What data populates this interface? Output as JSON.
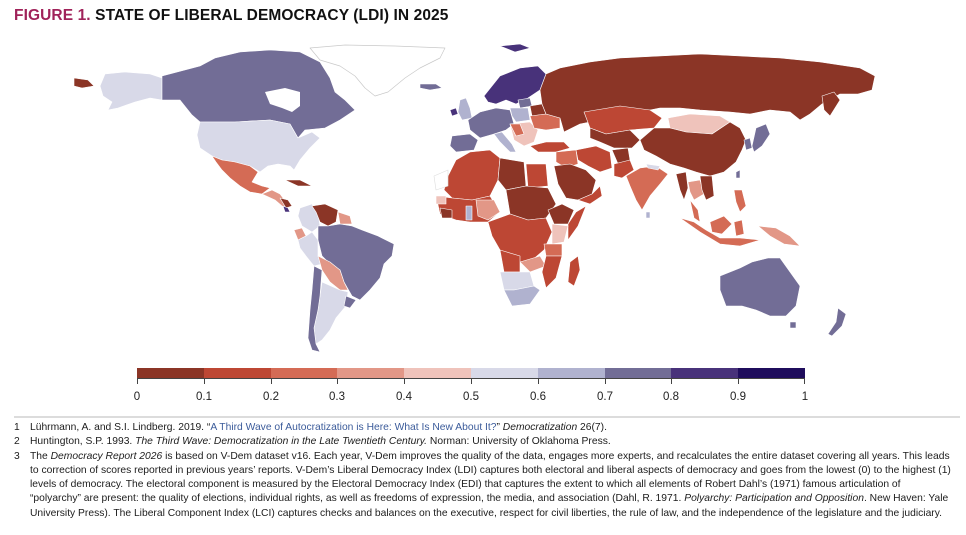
{
  "title": {
    "figure_label": "FIGURE 1.",
    "text": "STATE OF LIBERAL DEMOCRACY (LDI) IN 2025",
    "figure_label_color": "#a0225a"
  },
  "legend": {
    "ticks": [
      "0",
      "0.1",
      "0.2",
      "0.3",
      "0.4",
      "0.5",
      "0.6",
      "0.7",
      "0.8",
      "0.9",
      "1"
    ],
    "colors": [
      "#8b3526",
      "#bd4734",
      "#d46b55",
      "#e29787",
      "#efc3bb",
      "#d8d9e8",
      "#b0b2cf",
      "#726d96",
      "#48327a",
      "#1f0d5c"
    ]
  },
  "chart_data": {
    "type": "heatmap",
    "subtype": "choropleth-world-map",
    "title": "State of Liberal Democracy (LDI) in 2025",
    "scale": {
      "min": 0,
      "max": 1,
      "bins": [
        [
          0,
          0.1
        ],
        [
          0.1,
          0.2
        ],
        [
          0.2,
          0.3
        ],
        [
          0.3,
          0.4
        ],
        [
          0.4,
          0.5
        ],
        [
          0.5,
          0.6
        ],
        [
          0.6,
          0.7
        ],
        [
          0.7,
          0.8
        ],
        [
          0.8,
          0.9
        ],
        [
          0.9,
          1
        ]
      ]
    },
    "legend_position": "bottom",
    "regions": [
      {
        "name": "Canada",
        "bin": 7
      },
      {
        "name": "United States",
        "bin": 5
      },
      {
        "name": "Alaska",
        "bin": 5
      },
      {
        "name": "Greenland",
        "bin": -1
      },
      {
        "name": "Mexico",
        "bin": 2
      },
      {
        "name": "Central America",
        "bin": 3
      },
      {
        "name": "Nicaragua",
        "bin": 0
      },
      {
        "name": "Costa Rica",
        "bin": 8
      },
      {
        "name": "Cuba",
        "bin": 0
      },
      {
        "name": "Venezuela",
        "bin": 0
      },
      {
        "name": "Colombia",
        "bin": 5
      },
      {
        "name": "Ecuador",
        "bin": 3
      },
      {
        "name": "Peru",
        "bin": 5
      },
      {
        "name": "Brazil",
        "bin": 7
      },
      {
        "name": "Bolivia",
        "bin": 3
      },
      {
        "name": "Paraguay",
        "bin": 3
      },
      {
        "name": "Argentina",
        "bin": 5
      },
      {
        "name": "Chile",
        "bin": 7
      },
      {
        "name": "Uruguay",
        "bin": 7
      },
      {
        "name": "Iceland",
        "bin": 7
      },
      {
        "name": "Ireland",
        "bin": 8
      },
      {
        "name": "United Kingdom",
        "bin": 6
      },
      {
        "name": "Nordic countries",
        "bin": 8
      },
      {
        "name": "Western Europe",
        "bin": 7
      },
      {
        "name": "Poland",
        "bin": 6
      },
      {
        "name": "Hungary/Serbia",
        "bin": 3
      },
      {
        "name": "Italy",
        "bin": 6
      },
      {
        "name": "Russia",
        "bin": 0
      },
      {
        "name": "Belarus",
        "bin": 0
      },
      {
        "name": "Ukraine",
        "bin": 2
      },
      {
        "name": "Turkey",
        "bin": 1
      },
      {
        "name": "Kazakhstan",
        "bin": 1
      },
      {
        "name": "Central Asia",
        "bin": 0
      },
      {
        "name": "Mongolia",
        "bin": 4
      },
      {
        "name": "China",
        "bin": 0
      },
      {
        "name": "Japan",
        "bin": 7
      },
      {
        "name": "South Korea",
        "bin": 7
      },
      {
        "name": "India",
        "bin": 2
      },
      {
        "name": "Pakistan",
        "bin": 1
      },
      {
        "name": "Iran",
        "bin": 1
      },
      {
        "name": "Afghanistan",
        "bin": 0
      },
      {
        "name": "Saudi Arabia",
        "bin": 0
      },
      {
        "name": "Yemen",
        "bin": 0
      },
      {
        "name": "Sri Lanka",
        "bin": 6
      },
      {
        "name": "Myanmar",
        "bin": 0
      },
      {
        "name": "Thailand",
        "bin": 3
      },
      {
        "name": "Indonesia",
        "bin": 2
      },
      {
        "name": "Philippines",
        "bin": 2
      },
      {
        "name": "Papua New Guinea",
        "bin": 3
      },
      {
        "name": "Australia",
        "bin": 7
      },
      {
        "name": "New Zealand",
        "bin": 7
      },
      {
        "name": "North Africa (Algeria/Morocco)",
        "bin": 1
      },
      {
        "name": "Libya",
        "bin": 0
      },
      {
        "name": "Egypt",
        "bin": 1
      },
      {
        "name": "Sudan/Chad",
        "bin": 0
      },
      {
        "name": "Ethiopia",
        "bin": 0
      },
      {
        "name": "West Africa",
        "bin": 1
      },
      {
        "name": "Ghana",
        "bin": 6
      },
      {
        "name": "Nigeria",
        "bin": 3
      },
      {
        "name": "Central Africa",
        "bin": 1
      },
      {
        "name": "Kenya",
        "bin": 4
      },
      {
        "name": "Tanzania",
        "bin": 2
      },
      {
        "name": "Zambia",
        "bin": 3
      },
      {
        "name": "Mozambique",
        "bin": 1
      },
      {
        "name": "Madagascar",
        "bin": 1
      },
      {
        "name": "Namibia/Botswana",
        "bin": 5
      },
      {
        "name": "South Africa",
        "bin": 6
      }
    ]
  },
  "footnotes": [
    {
      "num": "1",
      "pre": "Lührmann, A. and S.I. Lindberg. 2019. “",
      "link": "A Third Wave of Autocratization is Here: What Is New About It?",
      "mid": "” ",
      "italic": "Democratization",
      "post": " 26(7)."
    },
    {
      "num": "2",
      "pre": "Huntington, S.P. 1993. ",
      "italic": "The Third Wave: Democratization in the Late Twentieth Century.",
      "post": " Norman: University of Oklahoma Press."
    },
    {
      "num": "3",
      "pre": "The ",
      "italic": "Democracy Report 2026",
      "mid": " is based on V-Dem dataset v16. Each year, V-Dem improves the quality of the data, engages more experts, and recalculates the entire dataset covering all years. This leads to correction of scores reported in previous years’ reports. V-Dem’s Liberal Democracy Index (LDI) captures both electoral and liberal aspects of democracy and goes from the lowest (0) to the highest (1) levels of democracy. The electoral component is measured by the Electoral Democracy Index (EDI) that captures the extent to which all elements of Robert Dahl’s (1971) famous articulation of “polyarchy” are present: the quality of elections, individual rights, as well as freedoms of expression, the media, and association (Dahl, R. 1971. ",
      "italic2": "Polyarchy: Participation and Opposition",
      "post": ". New Haven: Yale University Press). The Liberal Component Index (LCI) captures checks and balances on the executive, respect for civil liberties, the rule of law, and the independence of the legislature and the judiciary."
    }
  ]
}
